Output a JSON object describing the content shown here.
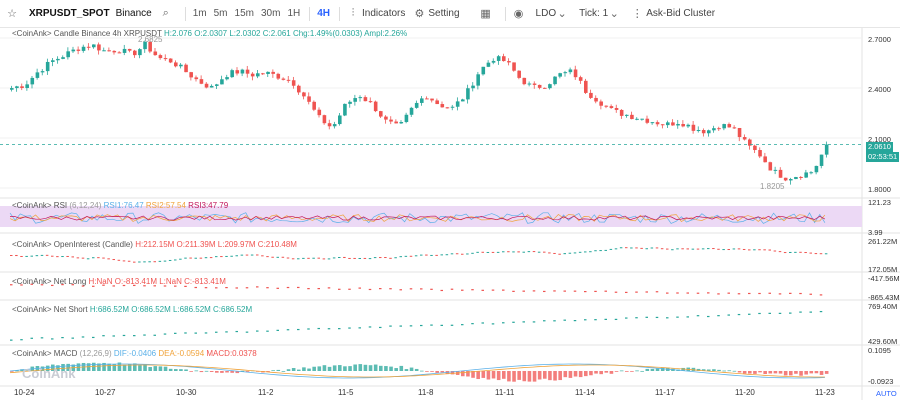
{
  "toolbar": {
    "symbol": "XRPUSDT_SPOT",
    "exchange": "Binance",
    "intervals": [
      "1m",
      "5m",
      "15m",
      "30m",
      "1H",
      "4H"
    ],
    "active_interval": "4H",
    "indicators_label": "Indicators",
    "setting_label": "Setting",
    "ldo_label": "LDO",
    "tick_label": "Tick:",
    "tick_value": "1",
    "cluster_label": "Ask-Bid Cluster"
  },
  "main": {
    "legend": "<CoinAnk> Candle  Binance 4h XRPUSDT",
    "ohlc": "H:2.076  O:2.0307  L:2.0302  C:2.061  Chg:1.49%(0.0303)  Ampl:2.26%",
    "high_marker": "2.6825",
    "low_marker": "1.8205",
    "axis": [
      "2.7000",
      "2.4000",
      "2.1000",
      "1.8000"
    ],
    "price_tag": "2.0610",
    "countdown_tag": "02:53:51"
  },
  "rsi": {
    "legend_name": "<CoinAnk> RSI",
    "params": "(6,12,24)",
    "rsi1": "RSI1:76.47",
    "rsi2": "RSI2:57.54",
    "rsi3": "RSI3:47.79",
    "axis": [
      "121.23",
      "3.99"
    ]
  },
  "oi": {
    "legend": "<CoinAnk> OpenInterest (Candle)",
    "values": "H:212.15M  O:211.39M  L:209.97M  C:210.48M",
    "axis": [
      "261.22M",
      "172.05M"
    ]
  },
  "netlong": {
    "legend": "<CoinAnk> Net Long",
    "values": "H:NaN  O:-813.41M  L:NaN  C:-813.41M",
    "axis": [
      "-417.56M",
      "-865.43M"
    ]
  },
  "netshort": {
    "legend": "<CoinAnk> Net Short",
    "values": "H:686.52M  O:686.52M  L:686.52M  C:686.52M",
    "axis": [
      "769.40M",
      "429.60M"
    ]
  },
  "macd": {
    "legend_name": "<CoinAnk> MACD",
    "params": "(12,26,9)",
    "dif": "DIF:-0.0406",
    "dea": "DEA:-0.0594",
    "macd": "MACD:0.0378",
    "axis": [
      "0.1095",
      "-0.0923"
    ]
  },
  "x_axis": [
    "10-24",
    "10-27",
    "10-30",
    "11-2",
    "11-5",
    "11-8",
    "11-11",
    "11-14",
    "11-17",
    "11-20",
    "11-23"
  ],
  "watermark": "CoinAnk",
  "auto_label": "AUTO",
  "colors": {
    "up": "#26a69a",
    "down": "#ef5350",
    "accent": "#2962ff",
    "rsi_band": "#ecd9f5"
  },
  "chart_data": {
    "type": "candlestick",
    "x_ticks": [
      "10-24",
      "10-27",
      "10-30",
      "11-2",
      "11-5",
      "11-8",
      "11-11",
      "11-14",
      "11-17",
      "11-20",
      "11-23"
    ],
    "price_path": [
      2.4,
      2.42,
      2.5,
      2.56,
      2.6,
      2.64,
      2.66,
      2.62,
      2.63,
      2.6,
      2.66,
      2.58,
      2.56,
      2.5,
      2.44,
      2.4,
      2.48,
      2.5,
      2.48,
      2.49,
      2.47,
      2.44,
      2.34,
      2.22,
      2.16,
      2.3,
      2.36,
      2.3,
      2.2,
      2.16,
      2.28,
      2.36,
      2.3,
      2.28,
      2.36,
      2.5,
      2.58,
      2.56,
      2.46,
      2.4,
      2.42,
      2.48,
      2.5,
      2.38,
      2.32,
      2.26,
      2.24,
      2.22,
      2.2,
      2.18,
      2.2,
      2.16,
      2.14,
      2.18,
      2.16,
      2.06,
      2.0,
      1.9,
      1.86,
      1.88,
      1.9,
      2.06
    ],
    "last_close": 2.061,
    "y_range": [
      1.8,
      2.7
    ]
  }
}
